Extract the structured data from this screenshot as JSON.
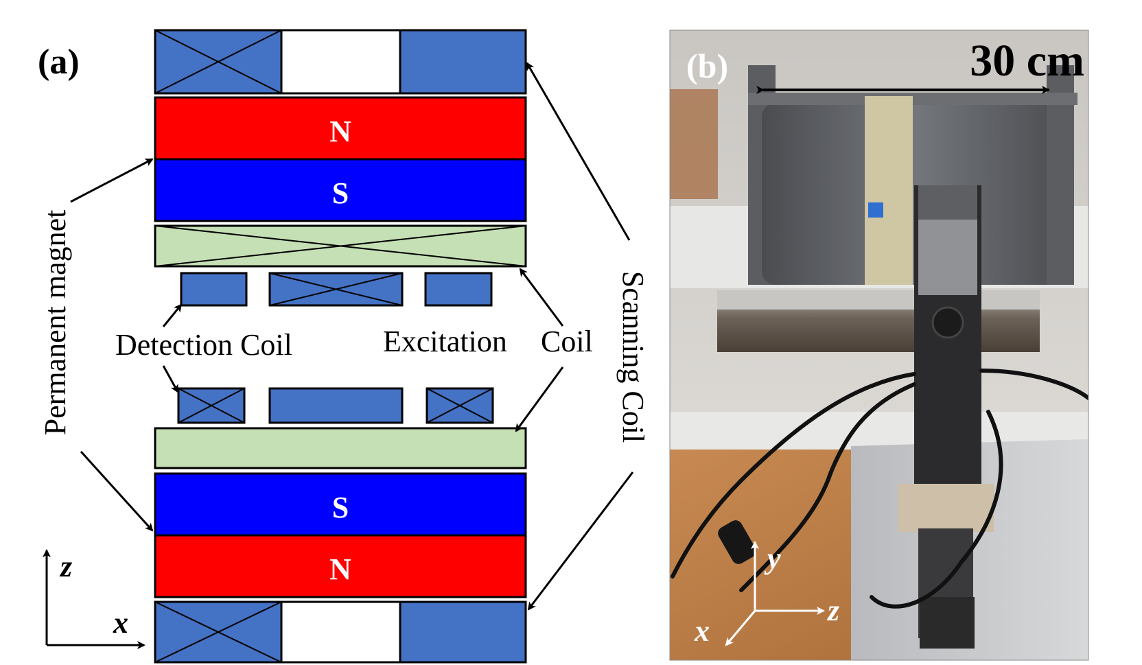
{
  "panel_a": {
    "label": "(a)",
    "labels": {
      "permanent_magnet": "Permanent magnet",
      "detection_coil": "Detection Coil",
      "excitation_coil": "Excitation",
      "coil_word": "Coil",
      "scanning_coil": "Scanning Coil",
      "north": "N",
      "south": "S"
    },
    "axes": {
      "z": "z",
      "x": "x"
    },
    "colors": {
      "coil_blue": "#4472c4",
      "magnet_north": "#ff0000",
      "magnet_south": "#0000ff",
      "excitation_green": "#c5e0b4",
      "outline": "#000000"
    }
  },
  "panel_b": {
    "label": "(b)",
    "scale_label": "30 cm",
    "axes": {
      "y": "y",
      "z": "z",
      "x": "x"
    }
  }
}
